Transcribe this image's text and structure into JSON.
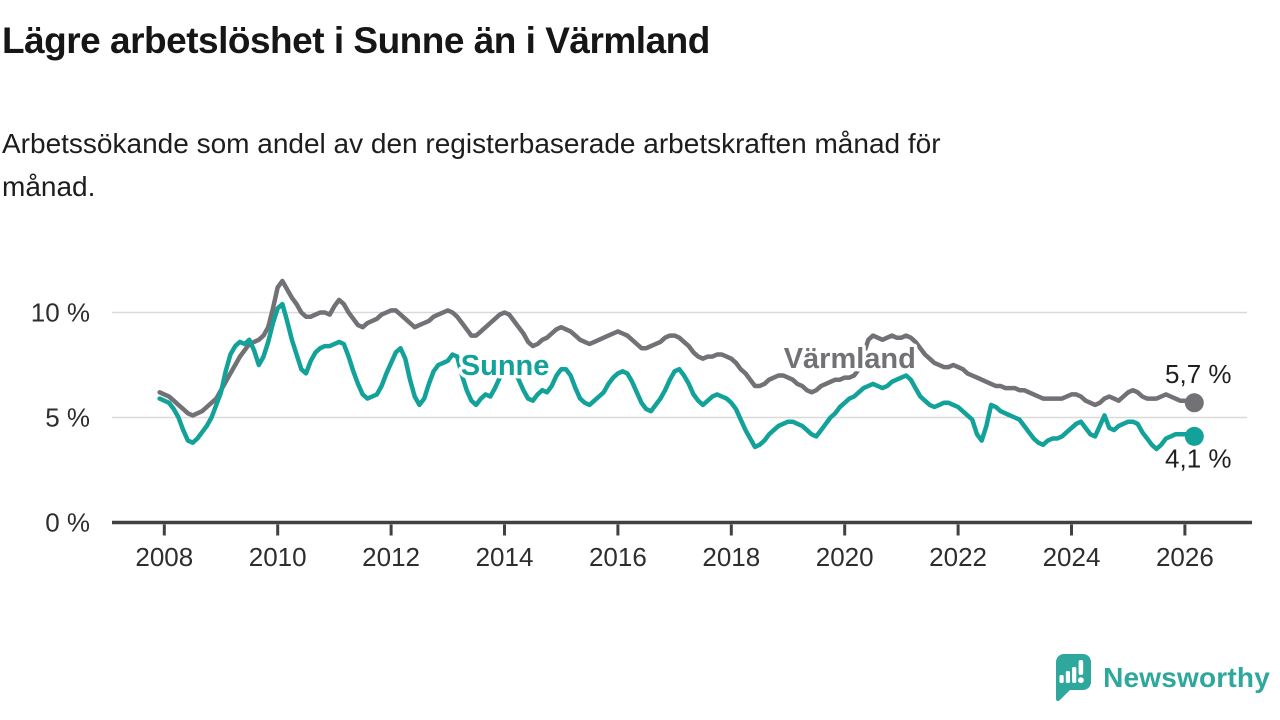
{
  "header": {
    "title": "Lägre arbetslöshet i Sunne än i Värmland",
    "subtitle": "Arbetssökande som andel av den registerbaserade arbetskraften månad för\nmånad."
  },
  "footer": {
    "brand": "Newsworthy",
    "brand_color": "#2ea79c"
  },
  "chart_data": {
    "type": "line",
    "title": "Lägre arbetslöshet i Sunne än i Värmland",
    "xlabel": "",
    "ylabel": "",
    "x_start": 2007.9167,
    "x_step_years": 0.08333,
    "xlim": [
      2007.7,
      2026.6
    ],
    "ylim": [
      0,
      11.8
    ],
    "grid": "horizontal",
    "legend_position": "inline-labels",
    "xticks": [
      2008,
      2010,
      2012,
      2014,
      2016,
      2018,
      2020,
      2022,
      2024,
      2026
    ],
    "xtick_labels": [
      "2008",
      "2010",
      "2012",
      "2014",
      "2016",
      "2018",
      "2020",
      "2022",
      "2024",
      "2026"
    ],
    "yticks": [
      0,
      5,
      10
    ],
    "ytick_labels": [
      "0 %",
      "5 %",
      "10 %"
    ],
    "gridline_color": "#dadada",
    "axis_color": "#414141",
    "series": [
      {
        "name": "Värmland",
        "color": "#717176",
        "end_label": "5,7 %",
        "end_value": 5.7,
        "end_label_side": "above",
        "label_pos": {
          "year": 2020.09,
          "value": 7.36
        },
        "values": [
          6.2,
          6.1,
          6.0,
          5.8,
          5.6,
          5.4,
          5.2,
          5.1,
          5.2,
          5.3,
          5.5,
          5.7,
          5.9,
          6.3,
          6.7,
          7.1,
          7.5,
          7.9,
          8.2,
          8.5,
          8.6,
          8.7,
          8.9,
          9.3,
          10.2,
          11.2,
          11.5,
          11.1,
          10.7,
          10.4,
          10.0,
          9.8,
          9.8,
          9.9,
          10.0,
          10.0,
          9.9,
          10.3,
          10.6,
          10.4,
          10.0,
          9.7,
          9.4,
          9.3,
          9.5,
          9.6,
          9.7,
          9.9,
          10.0,
          10.1,
          10.1,
          9.9,
          9.7,
          9.5,
          9.3,
          9.4,
          9.5,
          9.6,
          9.8,
          9.9,
          10.0,
          10.1,
          10.0,
          9.8,
          9.5,
          9.2,
          8.9,
          8.9,
          9.1,
          9.3,
          9.5,
          9.7,
          9.9,
          10.0,
          9.9,
          9.6,
          9.3,
          9.0,
          8.6,
          8.4,
          8.5,
          8.7,
          8.8,
          9.0,
          9.2,
          9.3,
          9.2,
          9.1,
          8.9,
          8.7,
          8.6,
          8.5,
          8.6,
          8.7,
          8.8,
          8.9,
          9.0,
          9.1,
          9.0,
          8.9,
          8.7,
          8.5,
          8.3,
          8.3,
          8.4,
          8.5,
          8.6,
          8.8,
          8.9,
          8.9,
          8.8,
          8.6,
          8.4,
          8.1,
          7.9,
          7.8,
          7.9,
          7.9,
          8.0,
          8.0,
          7.9,
          7.8,
          7.6,
          7.3,
          7.1,
          6.8,
          6.5,
          6.5,
          6.6,
          6.8,
          6.9,
          7.0,
          7.0,
          6.9,
          6.8,
          6.6,
          6.5,
          6.3,
          6.2,
          6.3,
          6.5,
          6.6,
          6.7,
          6.8,
          6.8,
          6.9,
          6.9,
          7.0,
          7.3,
          8.0,
          8.7,
          8.9,
          8.8,
          8.7,
          8.8,
          8.9,
          8.8,
          8.8,
          8.9,
          8.8,
          8.6,
          8.3,
          8.0,
          7.8,
          7.6,
          7.5,
          7.4,
          7.4,
          7.5,
          7.4,
          7.3,
          7.1,
          7.0,
          6.9,
          6.8,
          6.7,
          6.6,
          6.5,
          6.5,
          6.4,
          6.4,
          6.4,
          6.3,
          6.3,
          6.2,
          6.1,
          6.0,
          5.9,
          5.9,
          5.9,
          5.9,
          5.9,
          6.0,
          6.1,
          6.1,
          6.0,
          5.8,
          5.7,
          5.6,
          5.7,
          5.9,
          6.0,
          5.9,
          5.8,
          6.0,
          6.2,
          6.3,
          6.2,
          6.0,
          5.9,
          5.9,
          5.9,
          6.0,
          6.1,
          6.0,
          5.9,
          5.8,
          5.8,
          5.7,
          5.7
        ]
      },
      {
        "name": "Sunne",
        "color": "#13a29a",
        "end_label": "4,1 %",
        "end_value": 4.1,
        "end_label_side": "below",
        "label_pos": {
          "year": 2014.01,
          "value": 7.02
        },
        "values": [
          5.9,
          5.8,
          5.7,
          5.4,
          5.0,
          4.4,
          3.9,
          3.8,
          4.0,
          4.3,
          4.6,
          5.0,
          5.6,
          6.2,
          7.2,
          8.0,
          8.4,
          8.6,
          8.5,
          8.7,
          8.2,
          7.5,
          7.9,
          8.6,
          9.5,
          10.2,
          10.4,
          9.6,
          8.7,
          8.0,
          7.3,
          7.1,
          7.7,
          8.1,
          8.3,
          8.4,
          8.4,
          8.5,
          8.6,
          8.5,
          7.9,
          7.2,
          6.6,
          6.1,
          5.9,
          6.0,
          6.1,
          6.5,
          7.1,
          7.6,
          8.1,
          8.3,
          7.8,
          6.8,
          6.0,
          5.6,
          5.9,
          6.6,
          7.2,
          7.5,
          7.6,
          7.7,
          8.0,
          7.9,
          7.0,
          6.3,
          5.8,
          5.6,
          5.9,
          6.1,
          6.0,
          6.4,
          6.9,
          7.2,
          7.4,
          7.3,
          6.8,
          6.3,
          5.9,
          5.8,
          6.1,
          6.3,
          6.2,
          6.5,
          7.0,
          7.3,
          7.3,
          7.0,
          6.4,
          5.9,
          5.7,
          5.6,
          5.8,
          6.0,
          6.2,
          6.6,
          6.9,
          7.1,
          7.2,
          7.1,
          6.7,
          6.2,
          5.7,
          5.4,
          5.3,
          5.6,
          5.9,
          6.3,
          6.8,
          7.2,
          7.3,
          7.0,
          6.6,
          6.1,
          5.8,
          5.6,
          5.8,
          6.0,
          6.1,
          6.0,
          5.9,
          5.7,
          5.4,
          4.9,
          4.4,
          4.0,
          3.6,
          3.7,
          3.9,
          4.2,
          4.4,
          4.6,
          4.7,
          4.8,
          4.8,
          4.7,
          4.6,
          4.4,
          4.2,
          4.1,
          4.4,
          4.7,
          5.0,
          5.2,
          5.5,
          5.7,
          5.9,
          6.0,
          6.2,
          6.4,
          6.5,
          6.6,
          6.5,
          6.4,
          6.5,
          6.7,
          6.8,
          6.9,
          7.0,
          6.8,
          6.4,
          6.0,
          5.8,
          5.6,
          5.5,
          5.6,
          5.7,
          5.7,
          5.6,
          5.5,
          5.3,
          5.1,
          4.9,
          4.2,
          3.9,
          4.6,
          5.6,
          5.5,
          5.3,
          5.2,
          5.1,
          5.0,
          4.9,
          4.6,
          4.3,
          4.0,
          3.8,
          3.7,
          3.9,
          4.0,
          4.0,
          4.1,
          4.3,
          4.5,
          4.7,
          4.8,
          4.5,
          4.2,
          4.1,
          4.6,
          5.1,
          4.5,
          4.4,
          4.6,
          4.7,
          4.8,
          4.8,
          4.7,
          4.3,
          4.0,
          3.7,
          3.5,
          3.7,
          4.0,
          4.1,
          4.2,
          4.2,
          4.2,
          4.2,
          4.1
        ]
      }
    ]
  }
}
